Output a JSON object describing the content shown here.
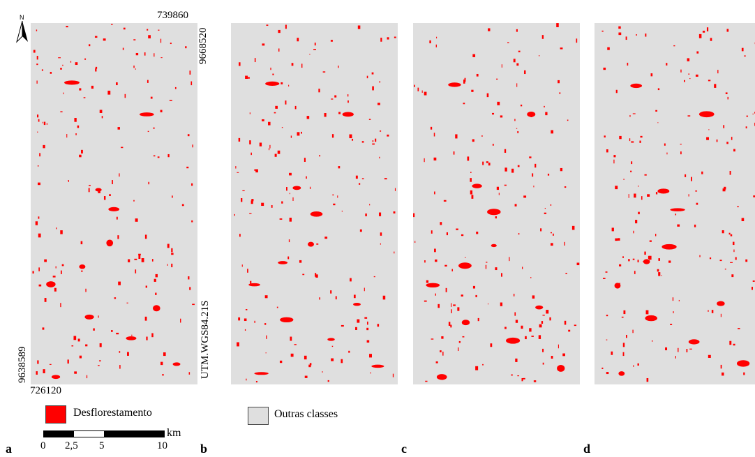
{
  "coords": {
    "top_easting": "739860",
    "top_northing": "9668520",
    "bottom_northing": "9638589",
    "bottom_easting": "726120",
    "projection": "UTM.WGS84.21S"
  },
  "north_arrow": {
    "label": "N",
    "icon": "north-arrow-icon"
  },
  "panels": [
    {
      "letter": "a"
    },
    {
      "letter": "b"
    },
    {
      "letter": "c"
    },
    {
      "letter": "d"
    }
  ],
  "legend": [
    {
      "label": "Desflorestamento",
      "color": "#ff0000"
    },
    {
      "label": "Outras classes",
      "color": "#dfdfdf"
    }
  ],
  "scale_bar": {
    "unit": "km",
    "ticks": [
      "0",
      "2,5",
      "5",
      "10"
    ]
  },
  "colors": {
    "deforestation": "#ff0000",
    "background": "#dfdfdf"
  }
}
